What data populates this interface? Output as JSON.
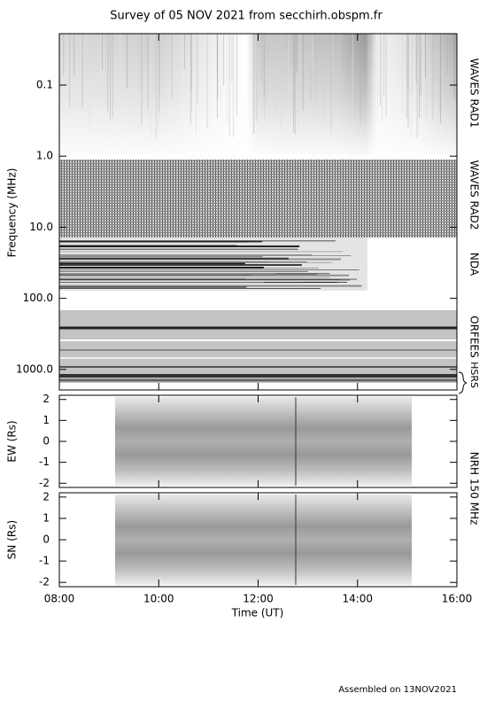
{
  "title": "Survey of 05 NOV 2021 from secchirh.obspm.fr",
  "frequency_panel": {
    "axis_label": "Frequency (MHz)",
    "ticks": [
      {
        "value": 0.1,
        "label": "0.1"
      },
      {
        "value": 1,
        "label": "1.0"
      },
      {
        "value": 10,
        "label": "10.0"
      },
      {
        "value": 100,
        "label": "100.0"
      },
      {
        "value": 1000,
        "label": "1000.0"
      }
    ],
    "instruments": [
      "WAVES RAD1",
      "WAVES RAD2",
      "NDA",
      "ORFEES",
      "HSRS"
    ]
  },
  "ew_panel": {
    "axis_label": "EW (Rs)",
    "ylim": [
      -2.2,
      2.2
    ],
    "yticks": [
      2,
      1,
      0,
      -1,
      -2
    ]
  },
  "sn_panel": {
    "axis_label": "SN (Rs)",
    "ylim": [
      -2.2,
      2.2
    ],
    "yticks": [
      2,
      1,
      0,
      -1,
      -2
    ]
  },
  "nrh_label": "NRH 150 MHz",
  "time_axis": {
    "label": "Time (UT)",
    "ticks": [
      "08:00",
      "10:00",
      "12:00",
      "14:00",
      "16:00"
    ]
  },
  "footer": "Assembled on 13NOV2021"
}
